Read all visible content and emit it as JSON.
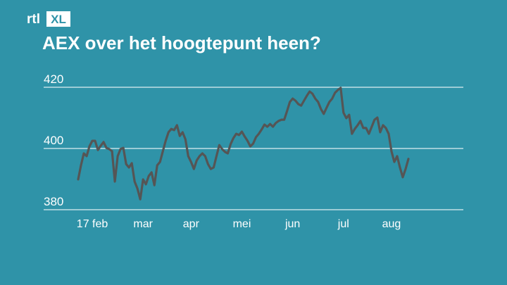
{
  "logo": [
    "rtl",
    "XL"
  ],
  "chart_data": {
    "type": "line",
    "title": "AEX over het hoogtepunt heen?",
    "categories": [
      null,
      null,
      null,
      null,
      null,
      "17 feb",
      null,
      null,
      null,
      null,
      null,
      null,
      null,
      null,
      null,
      null,
      null,
      null,
      null,
      null,
      null,
      null,
      null,
      "mar",
      null,
      null,
      null,
      null,
      null,
      null,
      null,
      null,
      null,
      null,
      null,
      null,
      null,
      null,
      null,
      null,
      "apr",
      null,
      null,
      null,
      null,
      null,
      null,
      null,
      null,
      null,
      null,
      null,
      null,
      null,
      null,
      null,
      null,
      null,
      "mei",
      null,
      null,
      null,
      null,
      null,
      null,
      null,
      null,
      null,
      null,
      null,
      null,
      null,
      null,
      null,
      null,
      null,
      "jun",
      null,
      null,
      null,
      null,
      null,
      null,
      null,
      null,
      null,
      null,
      null,
      null,
      null,
      null,
      null,
      null,
      null,
      "jul",
      null,
      null,
      null,
      null,
      null,
      null,
      null,
      null,
      null,
      null,
      null,
      null,
      null,
      null,
      null,
      null,
      "aug",
      null,
      null,
      null,
      null,
      null,
      null
    ],
    "series": [
      {
        "color": "#555555",
        "values": [
          389.9,
          394.5,
          398.4,
          397.5,
          400.7,
          402.5,
          402.5,
          399.5,
          400.9,
          402.1,
          400.2,
          399.8,
          399.1,
          389.2,
          397.5,
          399.8,
          400.2,
          394.9,
          393.8,
          395.2,
          389.2,
          386.9,
          383.4,
          389.9,
          388.3,
          391.0,
          392.2,
          388.0,
          394.5,
          395.6,
          399.1,
          402.5,
          405.3,
          406.4,
          406.0,
          407.6,
          404.1,
          405.3,
          403.0,
          397.5,
          395.6,
          393.3,
          396.1,
          397.5,
          398.4,
          397.5,
          394.9,
          393.3,
          393.8,
          397.5,
          401.1,
          399.8,
          398.9,
          398.4,
          401.4,
          403.4,
          404.8,
          404.4,
          405.5,
          403.9,
          402.5,
          400.7,
          401.6,
          403.7,
          404.8,
          406.2,
          407.8,
          407.1,
          408.0,
          407.1,
          408.3,
          409.0,
          409.4,
          409.4,
          412.2,
          415.2,
          416.3,
          415.6,
          414.5,
          414.0,
          415.6,
          417.2,
          418.6,
          417.9,
          416.3,
          415.2,
          412.9,
          411.3,
          413.3,
          415.2,
          416.3,
          418.2,
          419.1,
          419.8,
          411.7,
          409.9,
          411.0,
          404.8,
          406.4,
          407.6,
          409.0,
          406.7,
          406.7,
          404.8,
          407.1,
          409.4,
          410.1,
          405.3,
          407.6,
          406.7,
          404.8,
          399.1,
          395.6,
          397.5,
          393.8,
          390.6,
          393.3,
          396.6
        ]
      }
    ],
    "ylim": [
      380,
      420
    ],
    "yticks": [
      380,
      400,
      420
    ],
    "grid": true
  }
}
